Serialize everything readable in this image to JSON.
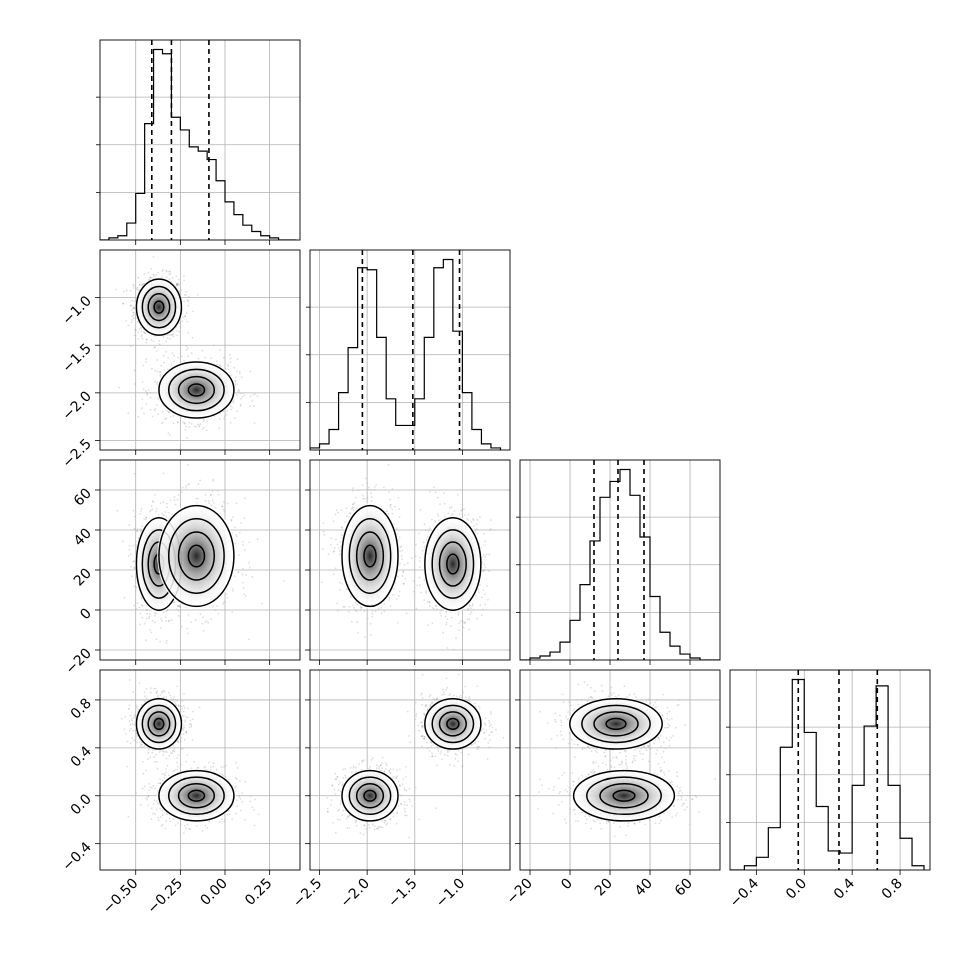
{
  "chart_data": {
    "type": "corner",
    "grid": true,
    "params": [
      {
        "range": [
          -0.7,
          0.42
        ],
        "ticks": [
          -0.5,
          -0.25,
          0.0,
          0.25
        ],
        "tick_labels": [
          "−0.50",
          "−0.25",
          "0.00",
          "0.25"
        ],
        "quantiles": [
          -0.41,
          -0.3,
          -0.09
        ],
        "hist": {
          "edges": [
            -0.7,
            -0.65,
            -0.6,
            -0.55,
            -0.5,
            -0.45,
            -0.4,
            -0.35,
            -0.3,
            -0.25,
            -0.2,
            -0.15,
            -0.1,
            -0.05,
            0.0,
            0.05,
            0.1,
            0.15,
            0.2,
            0.25,
            0.3,
            0.35,
            0.4
          ],
          "counts": [
            0,
            1,
            2,
            8,
            22,
            55,
            90,
            88,
            58,
            52,
            44,
            42,
            38,
            28,
            18,
            12,
            7,
            4,
            2,
            1,
            0,
            0
          ]
        }
      },
      {
        "range": [
          -2.6,
          -0.5
        ],
        "ticks": [
          -2.5,
          -2.0,
          -1.5,
          -1.0
        ],
        "tick_labels": [
          "−2.5",
          "−2.0",
          "−1.5",
          "−1.0"
        ],
        "quantiles": [
          -2.05,
          -1.52,
          -1.03
        ],
        "hist": {
          "edges": [
            -2.6,
            -2.5,
            -2.4,
            -2.3,
            -2.2,
            -2.1,
            -2.0,
            -1.9,
            -1.8,
            -1.7,
            -1.6,
            -1.5,
            -1.4,
            -1.3,
            -1.2,
            -1.1,
            -1.0,
            -0.9,
            -0.8,
            -0.7,
            -0.6
          ],
          "counts": [
            1,
            3,
            10,
            28,
            50,
            89,
            88,
            55,
            25,
            12,
            12,
            25,
            55,
            89,
            93,
            58,
            28,
            10,
            3,
            1
          ]
        }
      },
      {
        "range": [
          -25,
          75
        ],
        "ticks": [
          -20,
          0,
          20,
          40,
          60
        ],
        "tick_labels": [
          "−20",
          "0",
          "20",
          "40",
          "60"
        ],
        "quantiles": [
          12,
          24,
          37
        ],
        "hist": {
          "edges": [
            -25,
            -20,
            -15,
            -10,
            -5,
            0,
            5,
            10,
            15,
            20,
            25,
            30,
            35,
            40,
            45,
            50,
            55,
            60,
            65,
            70,
            75
          ],
          "counts": [
            0,
            1,
            2,
            4,
            9,
            20,
            38,
            60,
            82,
            90,
            96,
            83,
            62,
            32,
            14,
            7,
            3,
            1,
            0,
            0
          ]
        }
      },
      {
        "range": [
          -0.62,
          1.05
        ],
        "ticks": [
          -0.4,
          0.0,
          0.4,
          0.8
        ],
        "tick_labels": [
          "−0.4",
          "0.0",
          "0.4",
          "0.8"
        ],
        "quantiles": [
          -0.05,
          0.29,
          0.61
        ],
        "hist": {
          "edges": [
            -0.62,
            -0.5,
            -0.4,
            -0.3,
            -0.2,
            -0.1,
            0.0,
            0.1,
            0.2,
            0.3,
            0.4,
            0.5,
            0.6,
            0.7,
            0.8,
            0.9,
            1.0
          ],
          "counts": [
            0,
            2,
            6,
            20,
            58,
            90,
            65,
            30,
            9,
            8,
            40,
            68,
            87,
            40,
            15,
            2
          ]
        }
      }
    ],
    "clusters": [
      {
        "mean": [
          -0.37,
          -1.1,
          23,
          0.6
        ],
        "sd": [
          0.06,
          0.14,
          11,
          0.1
        ]
      },
      {
        "mean": [
          -0.16,
          -1.97,
          27,
          0.0
        ],
        "sd": [
          0.1,
          0.14,
          12,
          0.1
        ]
      }
    ]
  }
}
